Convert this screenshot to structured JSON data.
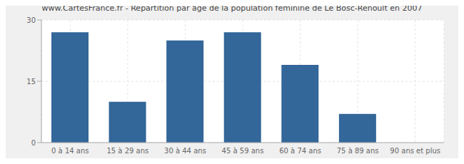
{
  "chart_data": {
    "type": "bar",
    "title": "www.CartesFrance.fr - Répartition par âge de la population féminine de Le Bosc-Renoult en 2007",
    "categories": [
      "0 à 14 ans",
      "15 à 29 ans",
      "30 à 44 ans",
      "45 à 59 ans",
      "60 à 74 ans",
      "75 à 89 ans",
      "90 ans et plus"
    ],
    "values": [
      27,
      10,
      25,
      27,
      19,
      7,
      0
    ],
    "color": "#336699",
    "ylim": [
      0,
      30
    ],
    "yticks": [
      0,
      15,
      30
    ],
    "grid": true
  }
}
